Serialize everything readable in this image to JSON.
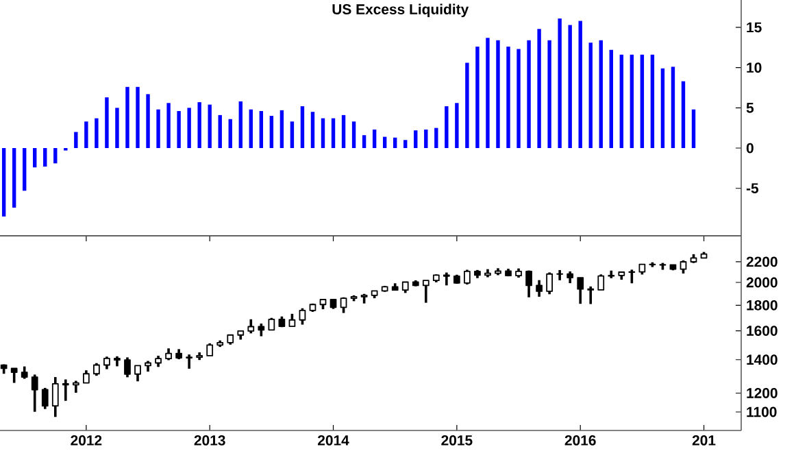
{
  "chart_data": [
    {
      "type": "bar",
      "title": "US Excess Liquidity",
      "color": "#0000ff",
      "tick_labels": "y",
      "xlim": [
        "2011-04-20",
        "2017-04-20"
      ],
      "ylim": [
        -10.9,
        18.4
      ],
      "yticks": [
        -5,
        0,
        5,
        10,
        15
      ],
      "x": [
        "2011-05",
        "2011-06",
        "2011-07",
        "2011-08",
        "2011-09",
        "2011-10",
        "2011-11",
        "2011-12",
        "2012-01",
        "2012-02",
        "2012-03",
        "2012-04",
        "2012-05",
        "2012-06",
        "2012-07",
        "2012-08",
        "2012-09",
        "2012-10",
        "2012-11",
        "2012-12",
        "2013-01",
        "2013-02",
        "2013-03",
        "2013-04",
        "2013-05",
        "2013-06",
        "2013-07",
        "2013-08",
        "2013-09",
        "2013-10",
        "2013-11",
        "2013-12",
        "2014-01",
        "2014-02",
        "2014-03",
        "2014-04",
        "2014-05",
        "2014-06",
        "2014-07",
        "2014-08",
        "2014-09",
        "2014-10",
        "2014-11",
        "2014-12",
        "2015-01",
        "2015-02",
        "2015-03",
        "2015-04",
        "2015-05",
        "2015-06",
        "2015-07",
        "2015-08",
        "2015-09",
        "2015-10",
        "2015-11",
        "2015-12",
        "2016-01",
        "2016-02",
        "2016-03",
        "2016-04",
        "2016-05",
        "2016-06",
        "2016-07",
        "2016-08",
        "2016-09",
        "2016-10",
        "2016-11",
        "2016-12"
      ],
      "values": [
        -8.5,
        -7.4,
        -5.3,
        -2.4,
        -2.3,
        -1.9,
        -0.3,
        2.0,
        3.3,
        3.7,
        6.3,
        5.0,
        7.6,
        7.6,
        6.7,
        4.8,
        5.6,
        4.6,
        5.0,
        5.7,
        5.4,
        4.1,
        3.6,
        5.8,
        4.8,
        4.6,
        4.0,
        4.7,
        3.3,
        5.2,
        4.5,
        3.7,
        3.7,
        4.1,
        3.3,
        1.6,
        2.3,
        1.4,
        1.3,
        1.0,
        2.2,
        2.3,
        2.5,
        5.2,
        5.6,
        10.6,
        12.6,
        13.7,
        13.4,
        12.6,
        12.3,
        13.4,
        14.8,
        13.4,
        16.1,
        15.3,
        15.8,
        13.1,
        13.4,
        12.2,
        11.6,
        11.6,
        11.6,
        11.6,
        9.9,
        10.1,
        8.3,
        4.8
      ]
    },
    {
      "type": "candlestick",
      "color": "#000000",
      "log": true,
      "xlim": [
        "2011-04-20",
        "2017-04-20"
      ],
      "ylim": [
        1010,
        2480
      ],
      "yticks": [
        1100,
        1200,
        1400,
        1600,
        1800,
        2000,
        2200
      ],
      "xticks": [
        {
          "value": "2012-01",
          "label": "2012"
        },
        {
          "value": "2013-01",
          "label": "2013"
        },
        {
          "value": "2014-01",
          "label": "2014"
        },
        {
          "value": "2015-01",
          "label": "2015"
        },
        {
          "value": "2016-01",
          "label": "2016"
        },
        {
          "value": "2017-01",
          "label": "201"
        }
      ],
      "x": [
        "2011-05",
        "2011-06",
        "2011-07",
        "2011-08",
        "2011-09",
        "2011-10",
        "2011-11",
        "2011-12",
        "2012-01",
        "2012-02",
        "2012-03",
        "2012-04",
        "2012-05",
        "2012-06",
        "2012-07",
        "2012-08",
        "2012-09",
        "2012-10",
        "2012-11",
        "2012-12",
        "2013-01",
        "2013-02",
        "2013-03",
        "2013-04",
        "2013-05",
        "2013-06",
        "2013-07",
        "2013-08",
        "2013-09",
        "2013-10",
        "2013-11",
        "2013-12",
        "2014-01",
        "2014-02",
        "2014-03",
        "2014-04",
        "2014-05",
        "2014-06",
        "2014-07",
        "2014-08",
        "2014-09",
        "2014-10",
        "2014-11",
        "2014-12",
        "2015-01",
        "2015-02",
        "2015-03",
        "2015-04",
        "2015-05",
        "2015-06",
        "2015-07",
        "2015-08",
        "2015-09",
        "2015-10",
        "2015-11",
        "2015-12",
        "2016-01",
        "2016-02",
        "2016-03",
        "2016-04",
        "2016-05",
        "2016-06",
        "2016-07",
        "2016-08",
        "2016-09",
        "2016-10",
        "2016-11",
        "2016-12",
        "2017-01"
      ],
      "ohlc": [
        [
          1365,
          1370,
          1312,
          1345
        ],
        [
          1345,
          1346,
          1258,
          1321
        ],
        [
          1321,
          1357,
          1282,
          1292
        ],
        [
          1292,
          1307,
          1101,
          1219
        ],
        [
          1219,
          1229,
          1115,
          1131
        ],
        [
          1131,
          1292,
          1075,
          1253
        ],
        [
          1253,
          1278,
          1158,
          1247
        ],
        [
          1247,
          1270,
          1202,
          1258
        ],
        [
          1258,
          1333,
          1258,
          1312
        ],
        [
          1312,
          1378,
          1300,
          1366
        ],
        [
          1366,
          1420,
          1340,
          1408
        ],
        [
          1408,
          1422,
          1358,
          1398
        ],
        [
          1398,
          1415,
          1291,
          1310
        ],
        [
          1310,
          1363,
          1267,
          1362
        ],
        [
          1362,
          1392,
          1325,
          1379
        ],
        [
          1379,
          1426,
          1354,
          1407
        ],
        [
          1407,
          1475,
          1397,
          1441
        ],
        [
          1441,
          1470,
          1403,
          1412
        ],
        [
          1412,
          1434,
          1343,
          1416
        ],
        [
          1416,
          1448,
          1398,
          1426
        ],
        [
          1426,
          1510,
          1426,
          1498
        ],
        [
          1498,
          1530,
          1485,
          1515
        ],
        [
          1515,
          1570,
          1501,
          1569
        ],
        [
          1569,
          1600,
          1536,
          1598
        ],
        [
          1598,
          1687,
          1581,
          1631
        ],
        [
          1631,
          1654,
          1560,
          1606
        ],
        [
          1606,
          1698,
          1605,
          1686
        ],
        [
          1686,
          1709,
          1627,
          1633
        ],
        [
          1633,
          1730,
          1633,
          1682
        ],
        [
          1682,
          1775,
          1646,
          1757
        ],
        [
          1757,
          1814,
          1746,
          1806
        ],
        [
          1806,
          1849,
          1767,
          1848
        ],
        [
          1848,
          1850,
          1770,
          1783
        ],
        [
          1783,
          1867,
          1737,
          1859
        ],
        [
          1859,
          1884,
          1834,
          1872
        ],
        [
          1872,
          1897,
          1815,
          1884
        ],
        [
          1884,
          1924,
          1859,
          1924
        ],
        [
          1924,
          1968,
          1915,
          1960
        ],
        [
          1960,
          1992,
          1930,
          1931
        ],
        [
          1931,
          2005,
          1905,
          2003
        ],
        [
          2003,
          2019,
          1965,
          1972
        ],
        [
          1972,
          2018,
          1821,
          2018
        ],
        [
          2018,
          2075,
          2001,
          2068
        ],
        [
          2068,
          2093,
          1973,
          2059
        ],
        [
          2059,
          2072,
          1988,
          1995
        ],
        [
          1995,
          2120,
          1981,
          2105
        ],
        [
          2105,
          2118,
          2040,
          2068
        ],
        [
          2068,
          2126,
          2048,
          2086
        ],
        [
          2086,
          2135,
          2068,
          2107
        ],
        [
          2107,
          2130,
          2057,
          2063
        ],
        [
          2063,
          2133,
          2045,
          2104
        ],
        [
          2104,
          2113,
          1867,
          1972
        ],
        [
          1972,
          2021,
          1872,
          1920
        ],
        [
          1920,
          2094,
          1894,
          2079
        ],
        [
          2079,
          2117,
          2020,
          2080
        ],
        [
          2080,
          2104,
          1993,
          2044
        ],
        [
          2044,
          2044,
          1812,
          1940
        ],
        [
          1940,
          1963,
          1810,
          1932
        ],
        [
          1932,
          2075,
          1931,
          2060
        ],
        [
          2060,
          2112,
          2039,
          2065
        ],
        [
          2065,
          2100,
          2025,
          2097
        ],
        [
          2097,
          2121,
          1992,
          2099
        ],
        [
          2099,
          2178,
          2074,
          2174
        ],
        [
          2174,
          2194,
          2147,
          2171
        ],
        [
          2171,
          2188,
          2120,
          2168
        ],
        [
          2168,
          2169,
          2115,
          2126
        ],
        [
          2126,
          2214,
          2084,
          2199
        ],
        [
          2199,
          2278,
          2187,
          2239
        ],
        [
          2239,
          2301,
          2234,
          2279
        ]
      ]
    }
  ]
}
